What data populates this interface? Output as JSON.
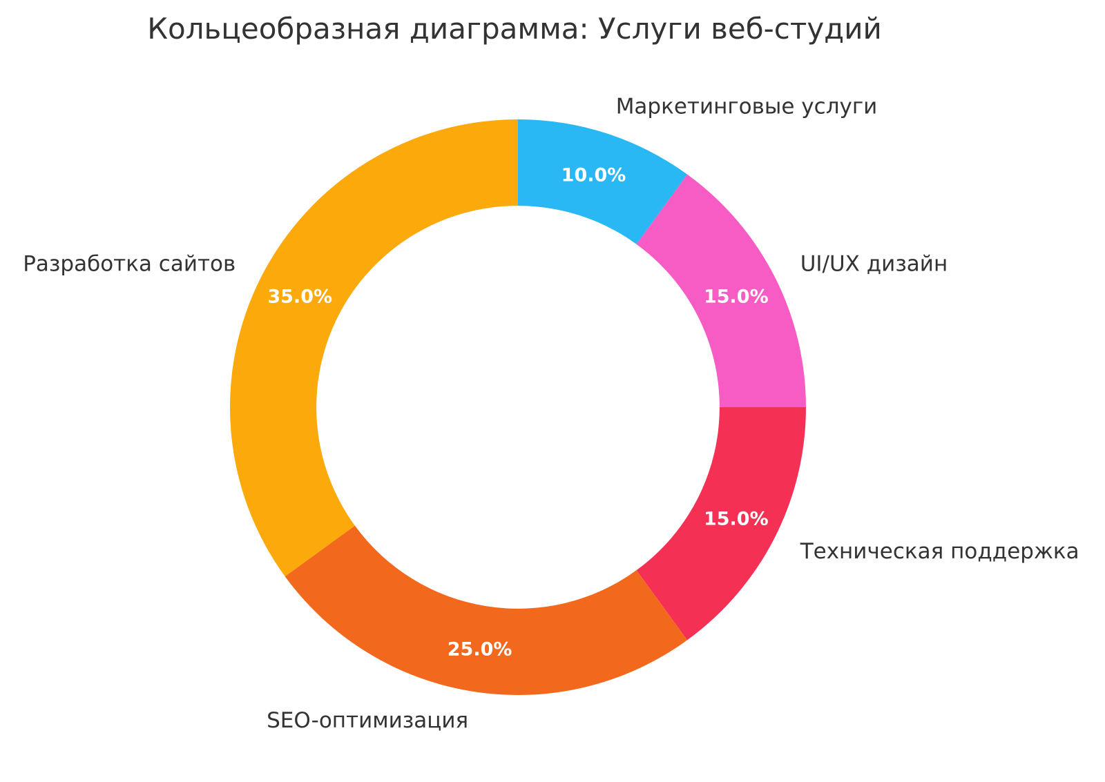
{
  "chart_data": {
    "type": "pie",
    "subtype": "donut",
    "title": "Кольцеобразная диаграмма: Услуги веб-студий",
    "categories": [
      "Маркетинговые услуги",
      "UI/UX дизайн",
      "Техническая поддержка",
      "SEO-оптимизация",
      "Разработка сайтов"
    ],
    "values": [
      10.0,
      15.0,
      15.0,
      25.0,
      35.0
    ],
    "percent_labels": [
      "10.0%",
      "15.0%",
      "15.0%",
      "25.0%",
      "35.0%"
    ],
    "colors": [
      "#2AB8F5",
      "#F75BC4",
      "#F43054",
      "#F2691E",
      "#FCA90B"
    ],
    "start_angle_deg": 0,
    "direction": "clockwise",
    "donut_hole_ratio": 0.7,
    "label_distance_ratio": 1.1,
    "legend": "none",
    "background_color": "#ffffff",
    "title_color": "#333333",
    "category_label_color": "#333333",
    "percent_label_color": "#ffffff"
  }
}
